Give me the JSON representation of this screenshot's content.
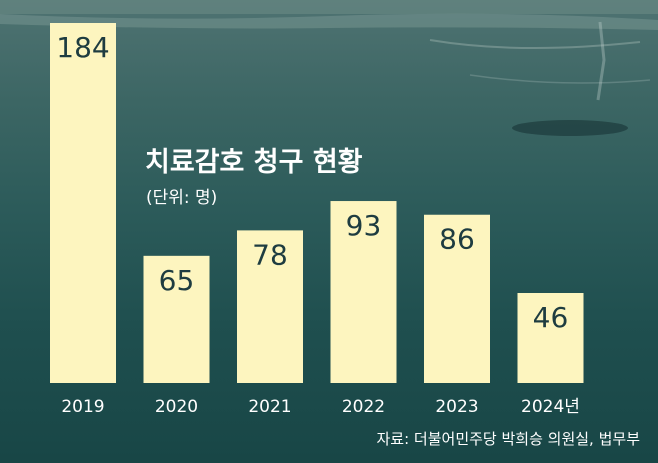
{
  "chart_data": {
    "type": "bar",
    "title": "치료감호 청구 현황",
    "subtitle": "(단위: 명)",
    "categories": [
      "2019",
      "2020",
      "2021",
      "2022",
      "2023",
      "2024년"
    ],
    "values": [
      184,
      65,
      78,
      93,
      86,
      46
    ],
    "ylim": [
      0,
      184
    ],
    "grid": false,
    "colors": {
      "bar": "#fdf5bf",
      "value_label": "#1e3c40",
      "text": "#ffffff"
    }
  },
  "source": "자료: 더불어민주당 박희승 의원실, 법무부"
}
